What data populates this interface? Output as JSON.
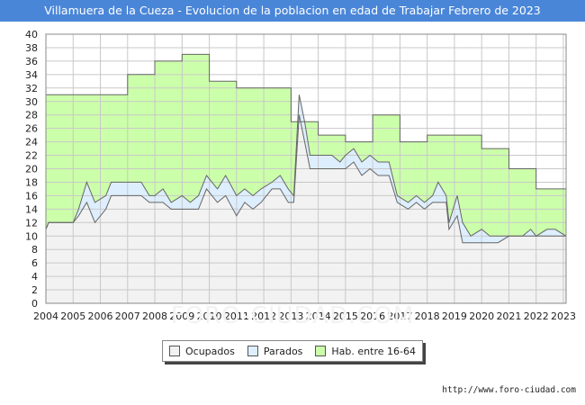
{
  "header": {
    "title": "Villamuera de la Cueza - Evolucion de la poblacion en edad de Trabajar Febrero de 2023"
  },
  "watermark": "FORO-CIUDAD.COM",
  "source": "http://www.foro-ciudad.com",
  "legend": {
    "items": [
      {
        "label": "Ocupados",
        "color": "#f2f2f2"
      },
      {
        "label": "Parados",
        "color": "#ddeeff"
      },
      {
        "label": "Hab. entre 16-64",
        "color": "#ccffaa"
      }
    ]
  },
  "chart_data": {
    "type": "area",
    "title": "Villamuera de la Cueza - Evolucion de la poblacion en edad de Trabajar Febrero de 2023",
    "xlabel": "",
    "ylabel": "",
    "xlim": [
      2004,
      2023.1
    ],
    "ylim": [
      0,
      40
    ],
    "x_ticks": [
      "2004",
      "2005",
      "2006",
      "2007",
      "2008",
      "2009",
      "2010",
      "2011",
      "2012",
      "2013",
      "2014",
      "2015",
      "2016",
      "2017",
      "2018",
      "2019",
      "2020",
      "2021",
      "2022",
      "2023"
    ],
    "y_ticks": [
      0,
      2,
      4,
      6,
      8,
      10,
      12,
      14,
      16,
      18,
      20,
      22,
      24,
      26,
      28,
      30,
      32,
      34,
      36,
      38,
      40
    ],
    "grid": true,
    "legend_position": "bottom",
    "colors": {
      "ocupados": "#f2f2f2",
      "parados": "#ddeeff",
      "habitantes": "#ccffaa",
      "line": "#666666"
    },
    "series": [
      {
        "name": "Hab. entre 16-64",
        "points": [
          [
            2004.0,
            31
          ],
          [
            2007.0,
            31
          ],
          [
            2007.0,
            34
          ],
          [
            2008.0,
            34
          ],
          [
            2008.0,
            36
          ],
          [
            2009.0,
            36
          ],
          [
            2009.0,
            37
          ],
          [
            2010.0,
            37
          ],
          [
            2010.0,
            33
          ],
          [
            2011.0,
            33
          ],
          [
            2011.0,
            32
          ],
          [
            2013.0,
            32
          ],
          [
            2013.0,
            27
          ],
          [
            2014.0,
            27
          ],
          [
            2014.0,
            25
          ],
          [
            2015.0,
            25
          ],
          [
            2015.0,
            24
          ],
          [
            2016.0,
            24
          ],
          [
            2016.0,
            28
          ],
          [
            2017.0,
            28
          ],
          [
            2017.0,
            24
          ],
          [
            2018.0,
            24
          ],
          [
            2018.0,
            25
          ],
          [
            2020.0,
            25
          ],
          [
            2020.0,
            23
          ],
          [
            2021.0,
            23
          ],
          [
            2021.0,
            20
          ],
          [
            2022.0,
            20
          ],
          [
            2022.0,
            17
          ],
          [
            2023.1,
            17
          ]
        ]
      },
      {
        "name": "Parados",
        "points": [
          [
            2004.0,
            11
          ],
          [
            2004.1,
            12
          ],
          [
            2005.0,
            12
          ],
          [
            2005.2,
            14
          ],
          [
            2005.5,
            18
          ],
          [
            2005.8,
            15
          ],
          [
            2006.2,
            16
          ],
          [
            2006.4,
            18
          ],
          [
            2007.0,
            18
          ],
          [
            2007.5,
            18
          ],
          [
            2007.8,
            16
          ],
          [
            2008.0,
            16
          ],
          [
            2008.3,
            17
          ],
          [
            2008.6,
            15
          ],
          [
            2009.0,
            16
          ],
          [
            2009.3,
            15
          ],
          [
            2009.6,
            16
          ],
          [
            2009.9,
            19
          ],
          [
            2010.3,
            17
          ],
          [
            2010.6,
            19
          ],
          [
            2011.0,
            16
          ],
          [
            2011.3,
            17
          ],
          [
            2011.6,
            16
          ],
          [
            2011.9,
            17
          ],
          [
            2012.3,
            18
          ],
          [
            2012.6,
            19
          ],
          [
            2012.9,
            17
          ],
          [
            2013.1,
            16
          ],
          [
            2013.3,
            31
          ],
          [
            2013.5,
            27
          ],
          [
            2013.7,
            22
          ],
          [
            2014.0,
            22
          ],
          [
            2014.5,
            22
          ],
          [
            2014.8,
            21
          ],
          [
            2015.0,
            22
          ],
          [
            2015.3,
            23
          ],
          [
            2015.6,
            21
          ],
          [
            2015.9,
            22
          ],
          [
            2016.2,
            21
          ],
          [
            2016.6,
            21
          ],
          [
            2016.9,
            16
          ],
          [
            2017.3,
            15
          ],
          [
            2017.6,
            16
          ],
          [
            2017.9,
            15
          ],
          [
            2018.2,
            16
          ],
          [
            2018.4,
            18
          ],
          [
            2018.7,
            16
          ],
          [
            2018.8,
            12
          ],
          [
            2019.1,
            16
          ],
          [
            2019.3,
            12
          ],
          [
            2019.6,
            10
          ],
          [
            2020.0,
            11
          ],
          [
            2020.3,
            10
          ],
          [
            2020.6,
            10
          ],
          [
            2021.0,
            10
          ],
          [
            2021.5,
            10
          ],
          [
            2021.8,
            11
          ],
          [
            2022.0,
            10
          ],
          [
            2022.4,
            11
          ],
          [
            2022.7,
            11
          ],
          [
            2023.1,
            10
          ]
        ]
      },
      {
        "name": "Ocupados",
        "points": [
          [
            2004.0,
            11
          ],
          [
            2004.1,
            12
          ],
          [
            2005.0,
            12
          ],
          [
            2005.2,
            13
          ],
          [
            2005.5,
            15
          ],
          [
            2005.8,
            12
          ],
          [
            2006.2,
            14
          ],
          [
            2006.4,
            16
          ],
          [
            2007.0,
            16
          ],
          [
            2007.5,
            16
          ],
          [
            2007.8,
            15
          ],
          [
            2008.0,
            15
          ],
          [
            2008.3,
            15
          ],
          [
            2008.6,
            14
          ],
          [
            2009.0,
            14
          ],
          [
            2009.3,
            14
          ],
          [
            2009.6,
            14
          ],
          [
            2009.9,
            17
          ],
          [
            2010.3,
            15
          ],
          [
            2010.6,
            16
          ],
          [
            2011.0,
            13
          ],
          [
            2011.3,
            15
          ],
          [
            2011.6,
            14
          ],
          [
            2011.9,
            15
          ],
          [
            2012.3,
            17
          ],
          [
            2012.6,
            17
          ],
          [
            2012.9,
            15
          ],
          [
            2013.1,
            15
          ],
          [
            2013.3,
            28
          ],
          [
            2013.5,
            24
          ],
          [
            2013.7,
            20
          ],
          [
            2014.0,
            20
          ],
          [
            2014.5,
            20
          ],
          [
            2014.8,
            20
          ],
          [
            2015.0,
            20
          ],
          [
            2015.3,
            21
          ],
          [
            2015.6,
            19
          ],
          [
            2015.9,
            20
          ],
          [
            2016.2,
            19
          ],
          [
            2016.6,
            19
          ],
          [
            2016.9,
            15
          ],
          [
            2017.3,
            14
          ],
          [
            2017.6,
            15
          ],
          [
            2017.9,
            14
          ],
          [
            2018.2,
            15
          ],
          [
            2018.4,
            15
          ],
          [
            2018.7,
            15
          ],
          [
            2018.8,
            11
          ],
          [
            2019.1,
            13
          ],
          [
            2019.3,
            9
          ],
          [
            2019.6,
            9
          ],
          [
            2020.0,
            9
          ],
          [
            2020.3,
            9
          ],
          [
            2020.6,
            9
          ],
          [
            2021.0,
            10
          ],
          [
            2021.5,
            10
          ],
          [
            2021.8,
            10
          ],
          [
            2022.0,
            10
          ],
          [
            2022.4,
            10
          ],
          [
            2022.7,
            10
          ],
          [
            2023.1,
            10
          ]
        ]
      }
    ]
  }
}
